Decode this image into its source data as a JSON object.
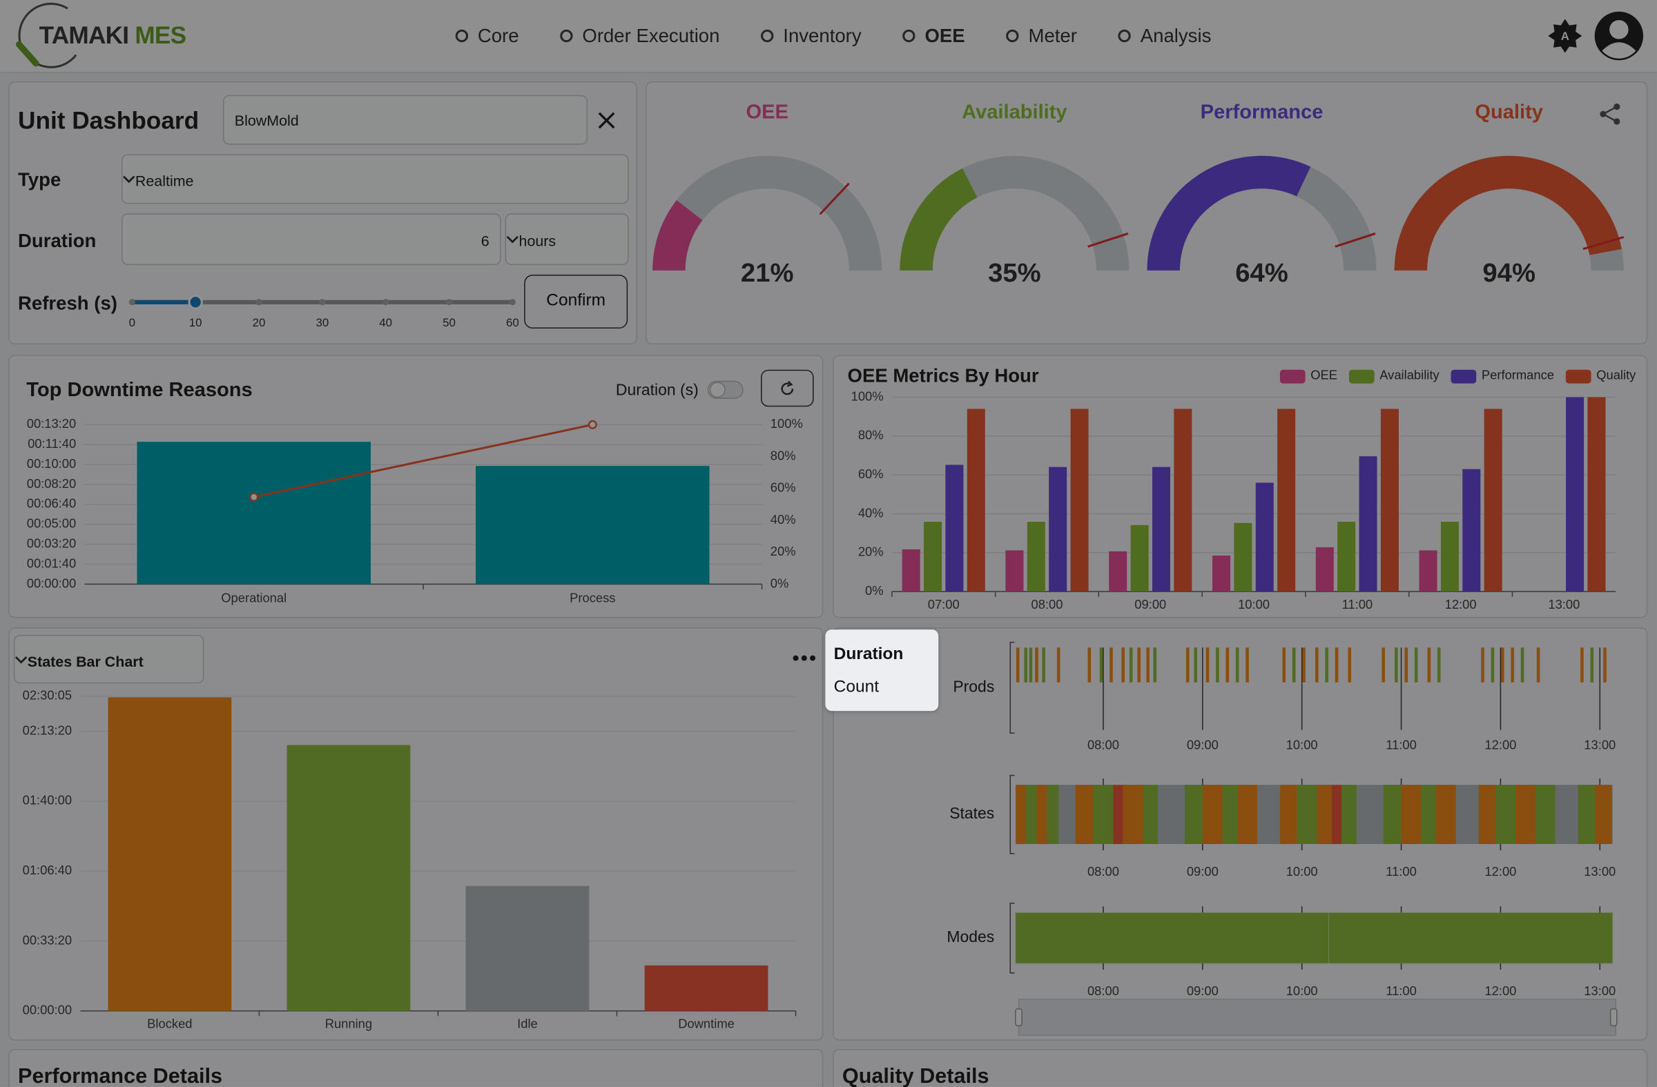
{
  "nav": {
    "logo_a": "TAMAKI",
    "logo_b": "MES",
    "items": [
      "Core",
      "Order Execution",
      "Inventory",
      "OEE",
      "Meter",
      "Analysis"
    ],
    "active_index": 3
  },
  "unit_form": {
    "title": "Unit Dashboard",
    "unit": "BlowMold",
    "type_label": "Type",
    "type": "Realtime",
    "duration_label": "Duration",
    "duration": 6,
    "duration_unit": "hours",
    "refresh_label": "Refresh (s)",
    "refresh": 10,
    "refresh_lim": [
      0,
      60
    ],
    "refresh_ticks": [
      0,
      10,
      20,
      30,
      40,
      50,
      60
    ],
    "confirm": "Confirm",
    "color": "#1a7fc4"
  },
  "gauges": {
    "type": "gauge",
    "ylim": [
      0,
      100
    ],
    "track_color": "#d3d8de",
    "target_color": "#e03030",
    "items": [
      {
        "name": "OEE",
        "color": "#e6509a",
        "value": 21,
        "value_label": "21%",
        "target": 74
      },
      {
        "name": "Availability",
        "color": "#8cbf3a",
        "value": 35,
        "value_label": "35%",
        "target": 90
      },
      {
        "name": "Performance",
        "color": "#6a4ae0",
        "value": 64,
        "value_label": "64%",
        "target": 90
      },
      {
        "name": "Quality",
        "color": "#ec5a34",
        "value": 94,
        "value_label": "94%",
        "target": 91
      }
    ]
  },
  "downtime_chart": {
    "type": "bar",
    "title": "Top Downtime Reasons",
    "toggle_label": "Duration (s)",
    "categories": [
      "Operational",
      "Process"
    ],
    "values": [
      714,
      593
    ],
    "color": "#00a6b5",
    "pareto_values": [
      54.6,
      100
    ],
    "pareto_color": "#ec5a34",
    "ylim": [
      0,
      800
    ],
    "yticks": [
      {
        "value": 0,
        "label": "00:00:00"
      },
      {
        "value": 100,
        "label": "00:01:40"
      },
      {
        "value": 200,
        "label": "00:03:20"
      },
      {
        "value": 300,
        "label": "00:05:00"
      },
      {
        "value": 400,
        "label": "00:06:40"
      },
      {
        "value": 500,
        "label": "00:08:20"
      },
      {
        "value": 600,
        "label": "00:10:00"
      },
      {
        "value": 700,
        "label": "00:11:40"
      },
      {
        "value": 800,
        "label": "00:13:20"
      }
    ],
    "y2lim": [
      0,
      100
    ],
    "y2ticks": [
      {
        "value": 0,
        "label": "0%"
      },
      {
        "value": 20,
        "label": "20%"
      },
      {
        "value": 40,
        "label": "40%"
      },
      {
        "value": 60,
        "label": "60%"
      },
      {
        "value": 80,
        "label": "80%"
      },
      {
        "value": 100,
        "label": "100%"
      }
    ],
    "grid": true
  },
  "oee_chart": {
    "type": "bar",
    "title": "OEE Metrics By Hour",
    "categories": [
      "07:00",
      "08:00",
      "09:00",
      "10:00",
      "11:00",
      "12:00",
      "13:00"
    ],
    "series": [
      {
        "name": "OEE",
        "color": "#e6509a",
        "values": [
          21.7,
          21.2,
          20.7,
          18.5,
          22.8,
          21.2,
          0
        ]
      },
      {
        "name": "Availability",
        "color": "#8cbf3a",
        "values": [
          35.9,
          35.9,
          34.2,
          35.3,
          35.9,
          35.9,
          0
        ]
      },
      {
        "name": "Performance",
        "color": "#6a4ae0",
        "values": [
          65.2,
          64.1,
          64.1,
          56,
          69.6,
          63,
          100
        ]
      },
      {
        "name": "Quality",
        "color": "#ec5a34",
        "values": [
          94,
          94,
          94,
          94,
          94,
          94,
          100
        ]
      }
    ],
    "ylim": [
      0,
      100
    ],
    "yticks": [
      {
        "value": 0,
        "label": "0%"
      },
      {
        "value": 20,
        "label": "20%"
      },
      {
        "value": 40,
        "label": "40%"
      },
      {
        "value": 60,
        "label": "60%"
      },
      {
        "value": 80,
        "label": "80%"
      },
      {
        "value": 100,
        "label": "100%"
      }
    ],
    "legend": "top-right",
    "grid": true
  },
  "states_chart": {
    "type": "bar",
    "selector": "States Bar Chart",
    "categories": [
      "Blocked",
      "Running",
      "Idle",
      "Downtime"
    ],
    "values": [
      8970,
      7606,
      3576,
      1303
    ],
    "colors": [
      "#f28a1c",
      "#8fbf3c",
      "#b4babf",
      "#f05a3c"
    ],
    "ylim": [
      0,
      9005
    ],
    "yticks": [
      {
        "value": 0,
        "label": "00:00:00"
      },
      {
        "value": 2000,
        "label": "00:33:20"
      },
      {
        "value": 4000,
        "label": "01:06:40"
      },
      {
        "value": 6000,
        "label": "01:40:00"
      },
      {
        "value": 8000,
        "label": "02:13:20"
      },
      {
        "value": 9005,
        "label": "02:30:05"
      }
    ],
    "grid": true
  },
  "timeline": {
    "type": "timeline",
    "xlim": [
      7.117,
      13.128
    ],
    "xticks": [
      {
        "value": 8,
        "label": "08:00"
      },
      {
        "value": 9,
        "label": "09:00"
      },
      {
        "value": 10,
        "label": "10:00"
      },
      {
        "value": 11,
        "label": "11:00"
      },
      {
        "value": 12,
        "label": "12:00"
      },
      {
        "value": 13,
        "label": "13:00"
      }
    ],
    "prods": {
      "label": "Prods",
      "times": [
        7.14,
        7.22,
        7.27,
        7.33,
        7.4,
        7.55,
        7.86,
        7.98,
        8.08,
        8.2,
        8.28,
        8.36,
        8.45,
        8.52,
        8.85,
        8.93,
        9.05,
        9.15,
        9.25,
        9.35,
        9.45,
        9.82,
        9.92,
        10.02,
        10.15,
        10.25,
        10.35,
        10.48,
        10.82,
        10.95,
        11.05,
        11.15,
        11.28,
        11.38,
        11.82,
        11.92,
        12.02,
        12.12,
        12.22,
        12.38,
        12.82,
        12.92,
        13.05
      ],
      "colors": [
        "#f28a1c",
        "#8fbf3c",
        "#8fbf3c",
        "#f28a1c",
        "#8fbf3c",
        "#f28a1c",
        "#f28a1c",
        "#8fbf3c",
        "#f28a1c",
        "#f28a1c",
        "#8fbf3c",
        "#f28a1c",
        "#f28a1c",
        "#8fbf3c",
        "#f28a1c",
        "#8fbf3c",
        "#f28a1c",
        "#8fbf3c",
        "#f28a1c",
        "#8fbf3c",
        "#f28a1c",
        "#f28a1c",
        "#8fbf3c",
        "#f28a1c",
        "#f28a1c",
        "#8fbf3c",
        "#f28a1c",
        "#f28a1c",
        "#f28a1c",
        "#8fbf3c",
        "#f28a1c",
        "#8fbf3c",
        "#f28a1c",
        "#8fbf3c",
        "#f28a1c",
        "#8fbf3c",
        "#f28a1c",
        "#f28a1c",
        "#8fbf3c",
        "#f28a1c",
        "#f28a1c",
        "#8fbf3c",
        "#f28a1c"
      ]
    },
    "states": {
      "label": "States",
      "background_color": "#b4babf",
      "starts": [
        7.12,
        7.22,
        7.33,
        7.43,
        7.72,
        7.9,
        8.1,
        8.2,
        8.4,
        8.82,
        9.0,
        9.2,
        9.35,
        9.78,
        9.95,
        10.15,
        10.3,
        10.4,
        10.82,
        11.0,
        11.2,
        11.35,
        11.78,
        11.95,
        12.15,
        12.35,
        12.78,
        12.95
      ],
      "ends": [
        7.22,
        7.33,
        7.43,
        7.55,
        7.9,
        8.1,
        8.2,
        8.4,
        8.55,
        9.0,
        9.2,
        9.35,
        9.55,
        9.95,
        10.15,
        10.3,
        10.4,
        10.55,
        11.0,
        11.2,
        11.35,
        11.55,
        11.95,
        12.15,
        12.35,
        12.55,
        12.95,
        13.12
      ],
      "colors": [
        "#f28a1c",
        "#8fbf3c",
        "#f28a1c",
        "#8fbf3c",
        "#f28a1c",
        "#8fbf3c",
        "#f05a3c",
        "#f28a1c",
        "#8fbf3c",
        "#8fbf3c",
        "#f28a1c",
        "#8fbf3c",
        "#f28a1c",
        "#f28a1c",
        "#8fbf3c",
        "#f28a1c",
        "#f05a3c",
        "#8fbf3c",
        "#8fbf3c",
        "#f28a1c",
        "#8fbf3c",
        "#f28a1c",
        "#f28a1c",
        "#8fbf3c",
        "#f28a1c",
        "#8fbf3c",
        "#8fbf3c",
        "#f28a1c"
      ]
    },
    "modes": {
      "label": "Modes",
      "starts": [
        7.117,
        10.27
      ],
      "ends": [
        10.27,
        13.128
      ],
      "colors": [
        "#8fbf3c",
        "#8fbf3c"
      ]
    }
  },
  "menu": {
    "items": [
      "Duration",
      "Count"
    ]
  },
  "sections": [
    "Performance Details",
    "Quality Details"
  ]
}
